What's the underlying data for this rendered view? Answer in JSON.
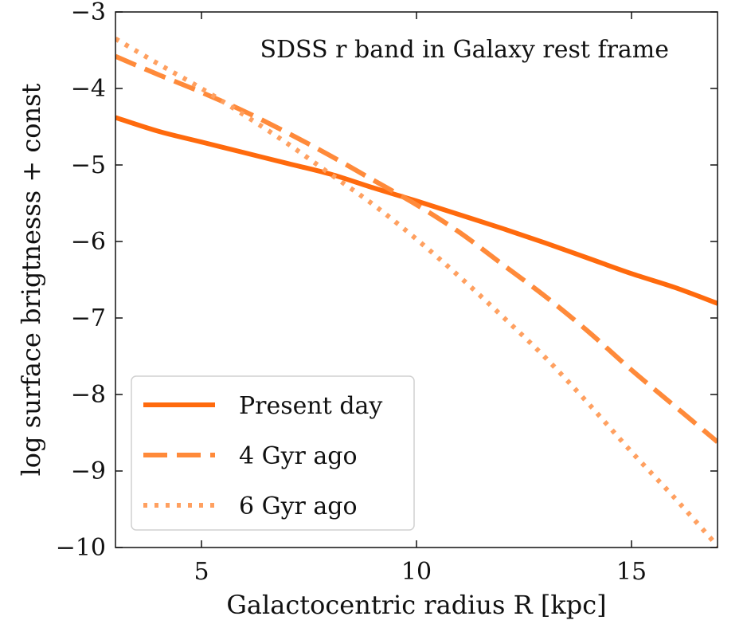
{
  "chart_data": {
    "type": "line",
    "title": "",
    "annotation": "SDSS r band in Galaxy rest frame",
    "xlabel": "Galactocentric radius R [kpc]",
    "ylabel": "log surface brigtnesss + const",
    "xlim": [
      3,
      17
    ],
    "ylim": [
      -10,
      -3
    ],
    "xticks": [
      5,
      10,
      15
    ],
    "xtick_labels": [
      "5",
      "10",
      "15"
    ],
    "yticks": [
      -3,
      -4,
      -5,
      -6,
      -7,
      -8,
      -9,
      -10
    ],
    "ytick_labels": [
      "−3",
      "−4",
      "−5",
      "−6",
      "−7",
      "−8",
      "−9",
      "−10"
    ],
    "grid": false,
    "legend_position": "lower-left",
    "x": [
      3,
      4,
      5,
      6,
      7,
      8,
      9,
      10,
      11,
      12,
      13,
      14,
      15,
      16,
      17
    ],
    "series": [
      {
        "name": "Present day",
        "style": "solid",
        "color": "#ff6a0d",
        "values": [
          -4.38,
          -4.56,
          -4.7,
          -4.84,
          -4.98,
          -5.12,
          -5.3,
          -5.47,
          -5.65,
          -5.83,
          -6.02,
          -6.22,
          -6.42,
          -6.6,
          -6.81
        ]
      },
      {
        "name": "4 Gyr ago",
        "style": "dashed",
        "color": "#ff8a3a",
        "values": [
          -3.58,
          -3.82,
          -4.05,
          -4.3,
          -4.58,
          -4.88,
          -5.2,
          -5.52,
          -5.88,
          -6.3,
          -6.72,
          -7.18,
          -7.68,
          -8.15,
          -8.62
        ]
      },
      {
        "name": "6 Gyr ago",
        "style": "dotted",
        "color": "#ffa060",
        "values": [
          -3.35,
          -3.68,
          -4.0,
          -4.35,
          -4.72,
          -5.12,
          -5.52,
          -5.97,
          -6.46,
          -6.98,
          -7.52,
          -8.12,
          -8.75,
          -9.35,
          -9.98
        ]
      }
    ]
  }
}
